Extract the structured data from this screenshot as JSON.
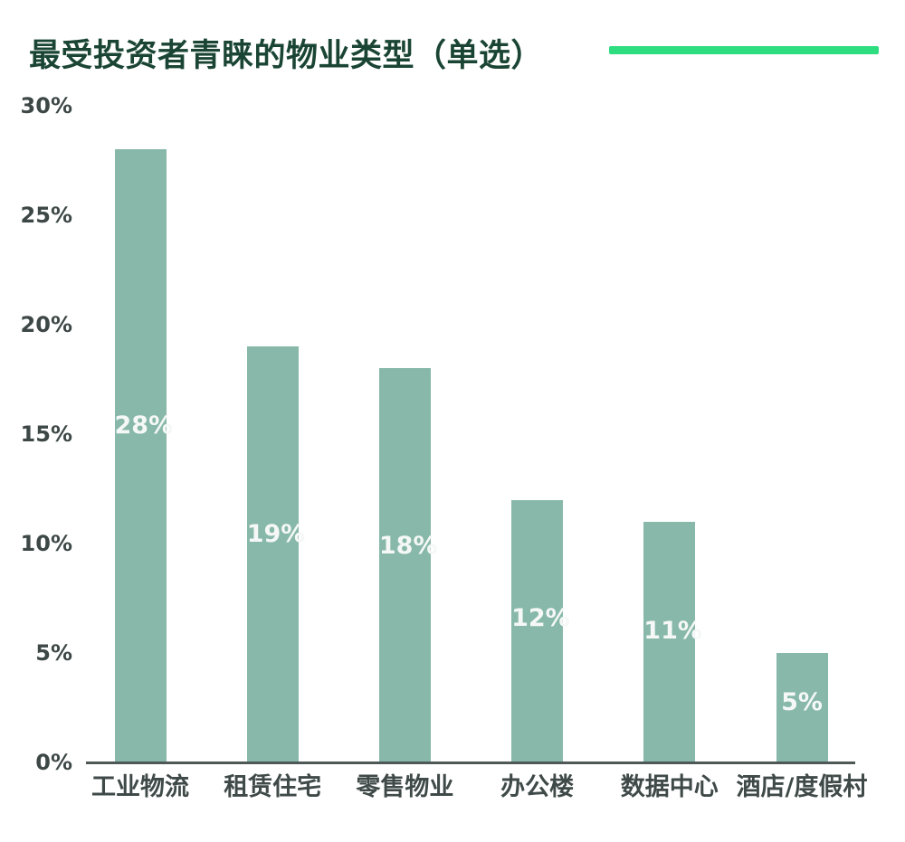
{
  "chart_data": {
    "type": "bar",
    "title": "最受投资者青睐的物业类型（单选）",
    "categories": [
      "工业物流",
      "租赁住宅",
      "零售物业",
      "办公楼",
      "数据中心",
      "酒店/度假村"
    ],
    "values": [
      28,
      19,
      18,
      12,
      11,
      5
    ],
    "value_labels": [
      "28%",
      "19%",
      "18%",
      "12%",
      "11%",
      "5%"
    ],
    "xlabel": "",
    "ylabel": "",
    "y_tick_values": [
      0,
      5,
      10,
      15,
      20,
      25,
      30
    ],
    "y_tick_suffix": "%",
    "ylim": [
      0,
      30
    ],
    "grid": false,
    "legend": "none",
    "colors": {
      "bar": "#87b8a9",
      "title": "#1a4534",
      "accent_line": "#2edd80",
      "axis_line": "#4d5857",
      "y_tick_label": "#3d4846",
      "category_label": "#3f4a48",
      "value_label": "#f5f8f6"
    }
  }
}
